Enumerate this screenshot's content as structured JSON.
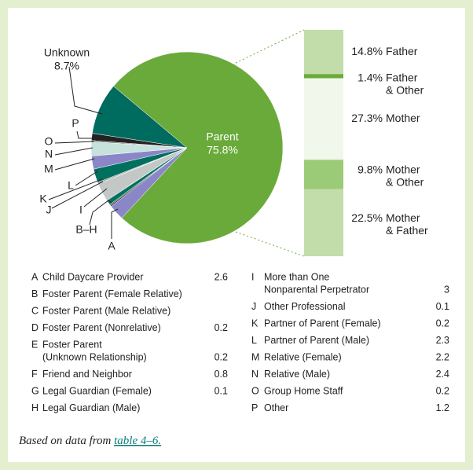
{
  "chart_data": [
    {
      "type": "pie",
      "series": [
        {
          "name": "Parent",
          "value": 75.8,
          "value_label": "75.8%",
          "color": "#6aaa3a"
        },
        {
          "name": "Unknown",
          "value": 8.7,
          "value_label": "8.7%",
          "color": "#006b5f"
        }
      ],
      "others": [
        {
          "letter": "A",
          "name": [
            "Child Daycare Provider"
          ],
          "value": 2.6,
          "color": "#8a86c8"
        },
        {
          "letter": "B",
          "name": [
            "Foster Parent (Female Relative)"
          ],
          "value": null
        },
        {
          "letter": "C",
          "name": [
            "Foster Parent (Male Relative)"
          ],
          "value": null
        },
        {
          "letter": "D",
          "name": [
            "Foster Parent (Nonrelative)"
          ],
          "value": 0.2,
          "color": "#1a3a36"
        },
        {
          "letter": "E",
          "name": [
            "Foster Parent",
            "(Unknown Relationship)"
          ],
          "value": 0.2,
          "color": "#555555"
        },
        {
          "letter": "F",
          "name": [
            "Friend and Neighbor"
          ],
          "value": 0.8,
          "color": "#00705f"
        },
        {
          "letter": "G",
          "name": [
            "Legal Guardian (Female)"
          ],
          "value": 0.1,
          "color": "#222222"
        },
        {
          "letter": "H",
          "name": [
            "Legal Guardian (Male)"
          ],
          "value": null
        },
        {
          "letter": "I",
          "name": [
            "More than One",
            "Nonparental Perpetrator"
          ],
          "value": 3.0,
          "color": "#c3c7c6"
        },
        {
          "letter": "J",
          "name": [
            "Other Professional"
          ],
          "value": 0.1,
          "color": "#333333"
        },
        {
          "letter": "K",
          "name": [
            "Partner of Parent (Female)"
          ],
          "value": 0.2,
          "color": "#888888"
        },
        {
          "letter": "L",
          "name": [
            "Partner of Parent (Male)"
          ],
          "value": 2.3,
          "color": "#00705f"
        },
        {
          "letter": "M",
          "name": [
            "Relative (Female)"
          ],
          "value": 2.2,
          "color": "#8a86c8"
        },
        {
          "letter": "N",
          "name": [
            "Relative (Male)"
          ],
          "value": 2.4,
          "color": "#c7e2dc"
        },
        {
          "letter": "O",
          "name": [
            "Group Home Staff"
          ],
          "value": 0.2,
          "color": "#444444"
        },
        {
          "letter": "P",
          "name": [
            "Other"
          ],
          "value": 1.2,
          "color": "#222222"
        }
      ],
      "callouts": [
        "P",
        "O",
        "N",
        "M",
        "L",
        "K",
        "J",
        "I",
        "B–H",
        "A"
      ]
    },
    {
      "type": "bar",
      "categories": [
        [
          "Father"
        ],
        [
          "Father",
          "& Other"
        ],
        [
          "Mother"
        ],
        [
          "Mother",
          "& Other"
        ],
        [
          "Mother",
          "& Father"
        ]
      ],
      "values": [
        14.8,
        1.4,
        27.3,
        9.8,
        22.5
      ],
      "value_labels": [
        "14.8%",
        "1.4%",
        "27.3%",
        "9.8%",
        "22.5%"
      ],
      "colors": [
        "#c2ddaa",
        "#6aaa3a",
        "#f1f7ea",
        "#9ccb78",
        "#c2ddaa"
      ]
    }
  ],
  "footer": {
    "text": "Based on data from",
    "link": "table 4–6."
  }
}
